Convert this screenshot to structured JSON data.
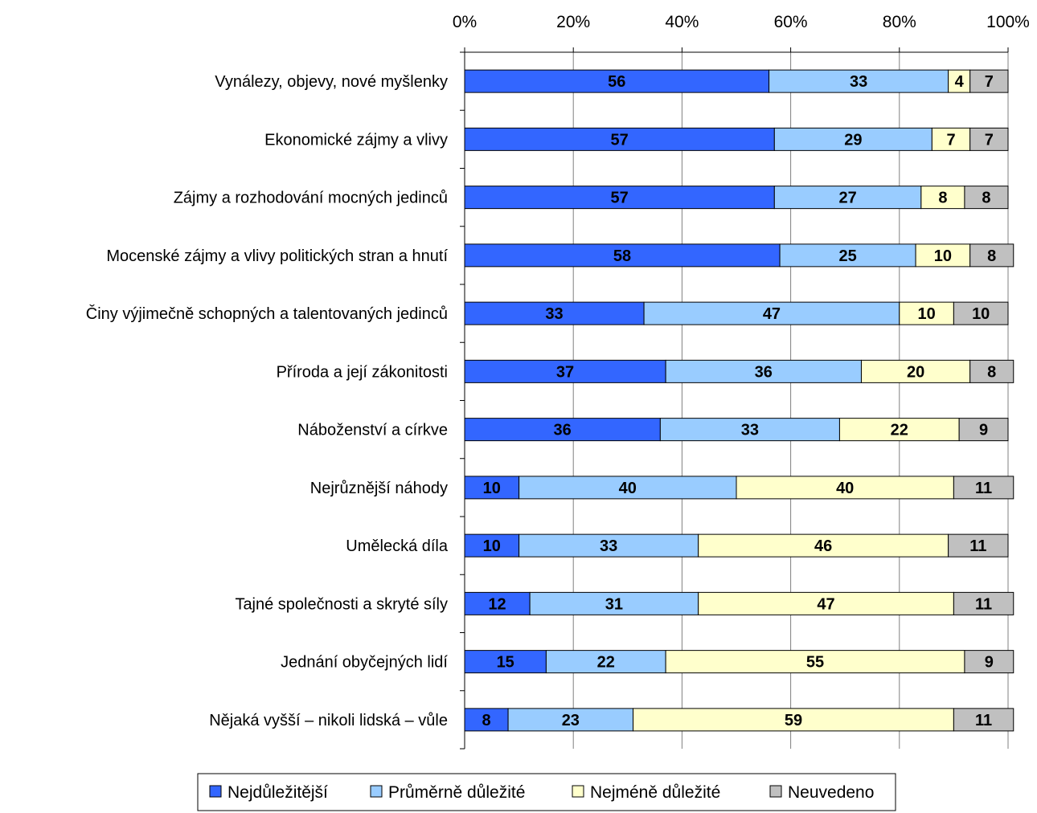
{
  "chart_data": {
    "type": "bar",
    "orientation": "horizontal",
    "stacked": true,
    "percent_stacked": true,
    "title": "",
    "xlabel": "",
    "ylabel": "",
    "xlim": [
      0,
      100
    ],
    "x_ticks": [
      "0%",
      "20%",
      "40%",
      "60%",
      "80%",
      "100%"
    ],
    "grid": "vertical",
    "legend_position": "bottom",
    "categories": [
      "Vynálezy, objevy, nové myšlenky",
      "Ekonomické zájmy a vlivy",
      "Zájmy a rozhodování mocných jedinců",
      "Mocenské zájmy a vlivy politických stran a hnutí",
      "Činy výjimečně schopných a talentovaných jedinců",
      "Příroda a její zákonitosti",
      "Náboženství a církve",
      "Nejrůznější náhody",
      "Umělecká díla",
      "Tajné společnosti a skryté síly",
      "Jednání obyčejných lidí",
      "Nějaká vyšší – nikoli lidská – vůle"
    ],
    "series": [
      {
        "name": "Nejdůležitější",
        "color": "#3366ff",
        "values": [
          56,
          57,
          57,
          58,
          33,
          37,
          36,
          10,
          10,
          12,
          15,
          8
        ]
      },
      {
        "name": "Průměrně důležité",
        "color": "#99ccff",
        "values": [
          33,
          29,
          27,
          25,
          47,
          36,
          33,
          40,
          33,
          31,
          22,
          23
        ]
      },
      {
        "name": "Nejméně důležité",
        "color": "#ffffcc",
        "values": [
          4,
          7,
          8,
          10,
          10,
          20,
          22,
          40,
          46,
          47,
          55,
          59
        ]
      },
      {
        "name": "Neuvedeno",
        "color": "#c0c0c0",
        "values": [
          7,
          7,
          8,
          8,
          10,
          8,
          9,
          11,
          11,
          11,
          9,
          11
        ]
      }
    ]
  }
}
